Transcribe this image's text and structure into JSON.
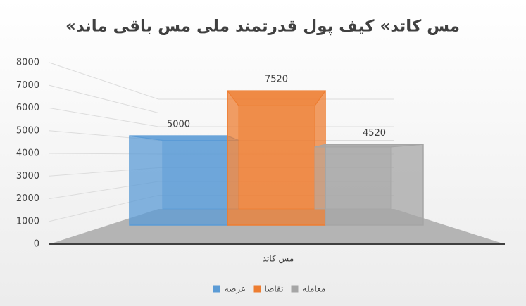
{
  "chart_data": {
    "type": "bar",
    "title": "«مس کاتد» کیف پول قدرتمند ملی مس باقی ماند",
    "categories": [
      "مس کاتد"
    ],
    "series": [
      {
        "name": "عرضه",
        "color": "#5b9bd5",
        "values": [
          5000
        ]
      },
      {
        "name": "تقاضا",
        "color": "#ed7d31",
        "values": [
          7520
        ]
      },
      {
        "name": "معامله",
        "color": "#a5a5a5",
        "values": [
          4520
        ]
      }
    ],
    "ylim": [
      0,
      8000
    ],
    "yticks": [
      0,
      1000,
      2000,
      3000,
      4000,
      5000,
      6000,
      7000,
      8000
    ],
    "grid": true,
    "legend": "bottom"
  }
}
